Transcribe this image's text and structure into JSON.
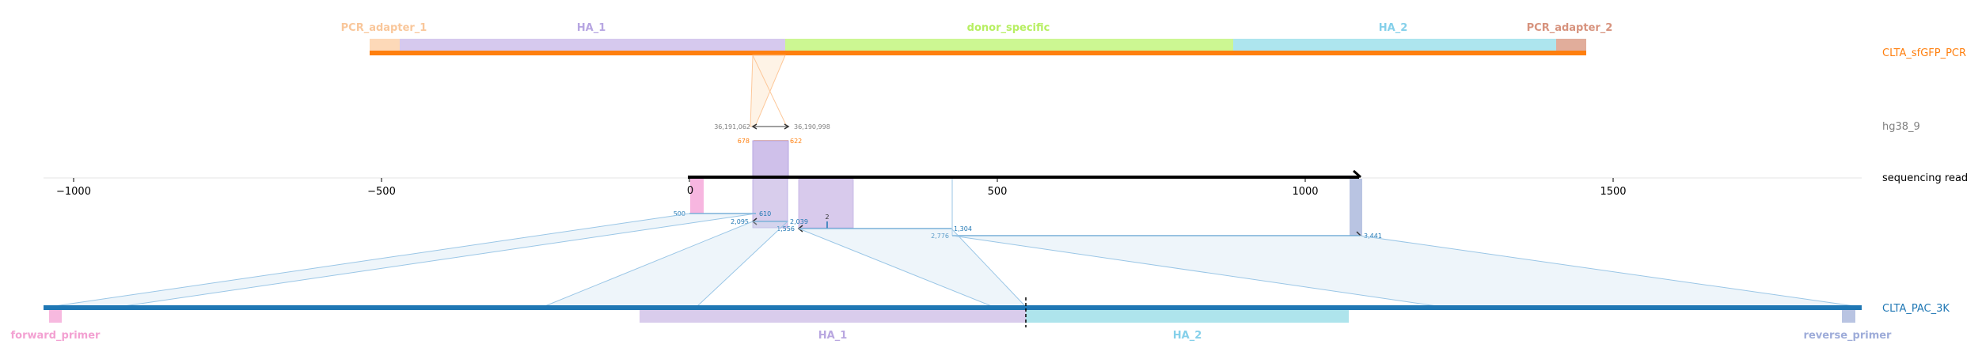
{
  "colors": {
    "black": "#000000",
    "grey": "#808080",
    "orange": "#ff7f0e",
    "blue": "#1f77b4",
    "pcr_adapter_1": "#fdd0a2",
    "ha1": "#bcaee0",
    "donor": "#b5f06b",
    "ha2": "#8fd7e8",
    "pcr_adapter_2": "#d99a85",
    "forward_primer": "#f7a8d8",
    "reverse_primer": "#9aa8d8",
    "read_pink": "#f7b6e0"
  },
  "top_features": [
    {
      "name": "PCR_adapter_1",
      "color": "#fdd0a2",
      "label_color": "#f9c79b"
    },
    {
      "name": "HA_1",
      "color": "#d2c4ec",
      "label_color": "#b7a6e2"
    },
    {
      "name": "donor_specific",
      "color": "#c9f58c",
      "label_color": "#b7ef62"
    },
    {
      "name": "HA_2",
      "color": "#a8e3ec",
      "label_color": "#85d0ea"
    },
    {
      "name": "PCR_adapter_2",
      "color": "#e3ab98",
      "label_color": "#d7937e"
    }
  ],
  "bottom_features": [
    {
      "name": "forward_primer",
      "color": "#f7b9df",
      "label_color": "#f3a1d2"
    },
    {
      "name": "HA_1",
      "color": "#d9ccec",
      "label_color": "#b9a7e0"
    },
    {
      "name": "HA_2",
      "color": "#aee4ec",
      "label_color": "#85d0ea"
    },
    {
      "name": "reverse_primer",
      "color": "#b9c4e2",
      "label_color": "#9eacd9"
    }
  ],
  "track_labels": {
    "pcr": "CLTA_sfGFP_PCR",
    "genome": "hg38_9",
    "read": "sequencing read",
    "pac": "CLTA_PAC_3K"
  },
  "axis": {
    "min": -1000,
    "max": 1500,
    "ticks": [
      -1000,
      -500,
      0,
      500,
      1000,
      1500
    ],
    "tick_labels": [
      "−1000",
      "−500",
      "0",
      "500",
      "1000",
      "1500"
    ]
  },
  "read": {
    "start": 0,
    "end": 1100
  },
  "alignments": [
    {
      "id": "genome-left",
      "query_start": 0,
      "query_end": 3,
      "labels": [
        "36,191,062",
        "36,190,998"
      ]
    },
    {
      "id": "pcr",
      "query_start": 0,
      "query_end": 3,
      "labels": [
        "678",
        "622"
      ]
    },
    {
      "id": "pac-1",
      "labels": [
        "500",
        "610"
      ]
    },
    {
      "id": "pac-2",
      "labels": [
        "2,095",
        "2,039"
      ]
    },
    {
      "id": "pac-3",
      "labels": [
        "1,556",
        "1,304"
      ]
    },
    {
      "id": "pac-4",
      "labels": [
        "2,776",
        "3,441"
      ]
    }
  ],
  "small_labels": {
    "marker_2": "2",
    "marker_2b": "2"
  }
}
